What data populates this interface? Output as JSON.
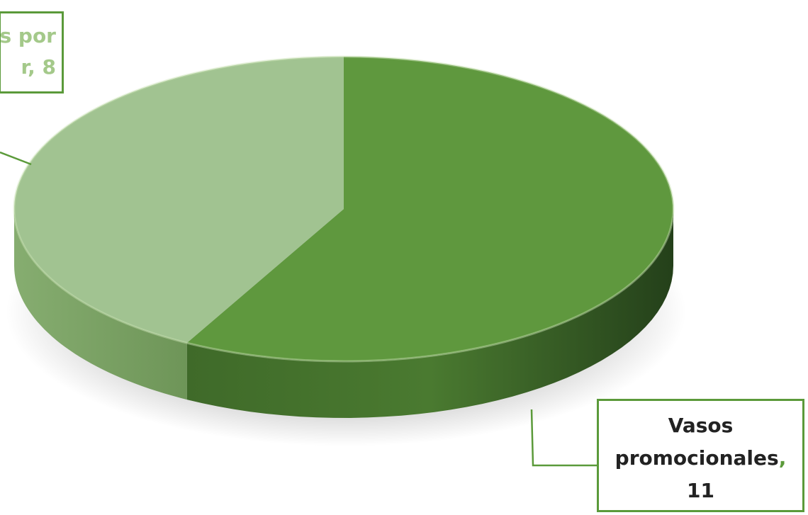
{
  "chart_data": {
    "type": "pie",
    "style": "3d",
    "categories": [
      "Vasos promocionales",
      "Vasos por mayor"
    ],
    "values": [
      11,
      8
    ],
    "colors": [
      "#5f983e",
      "#a1c391"
    ],
    "data_labels": [
      {
        "category": "Vasos promocionales",
        "lines": [
          "Vasos",
          "promocionales",
          "11"
        ],
        "separator": ","
      },
      {
        "category": "Vasos por mayor",
        "lines": [
          "s por",
          "r, 8"
        ]
      }
    ],
    "legend": "none",
    "title": ""
  }
}
